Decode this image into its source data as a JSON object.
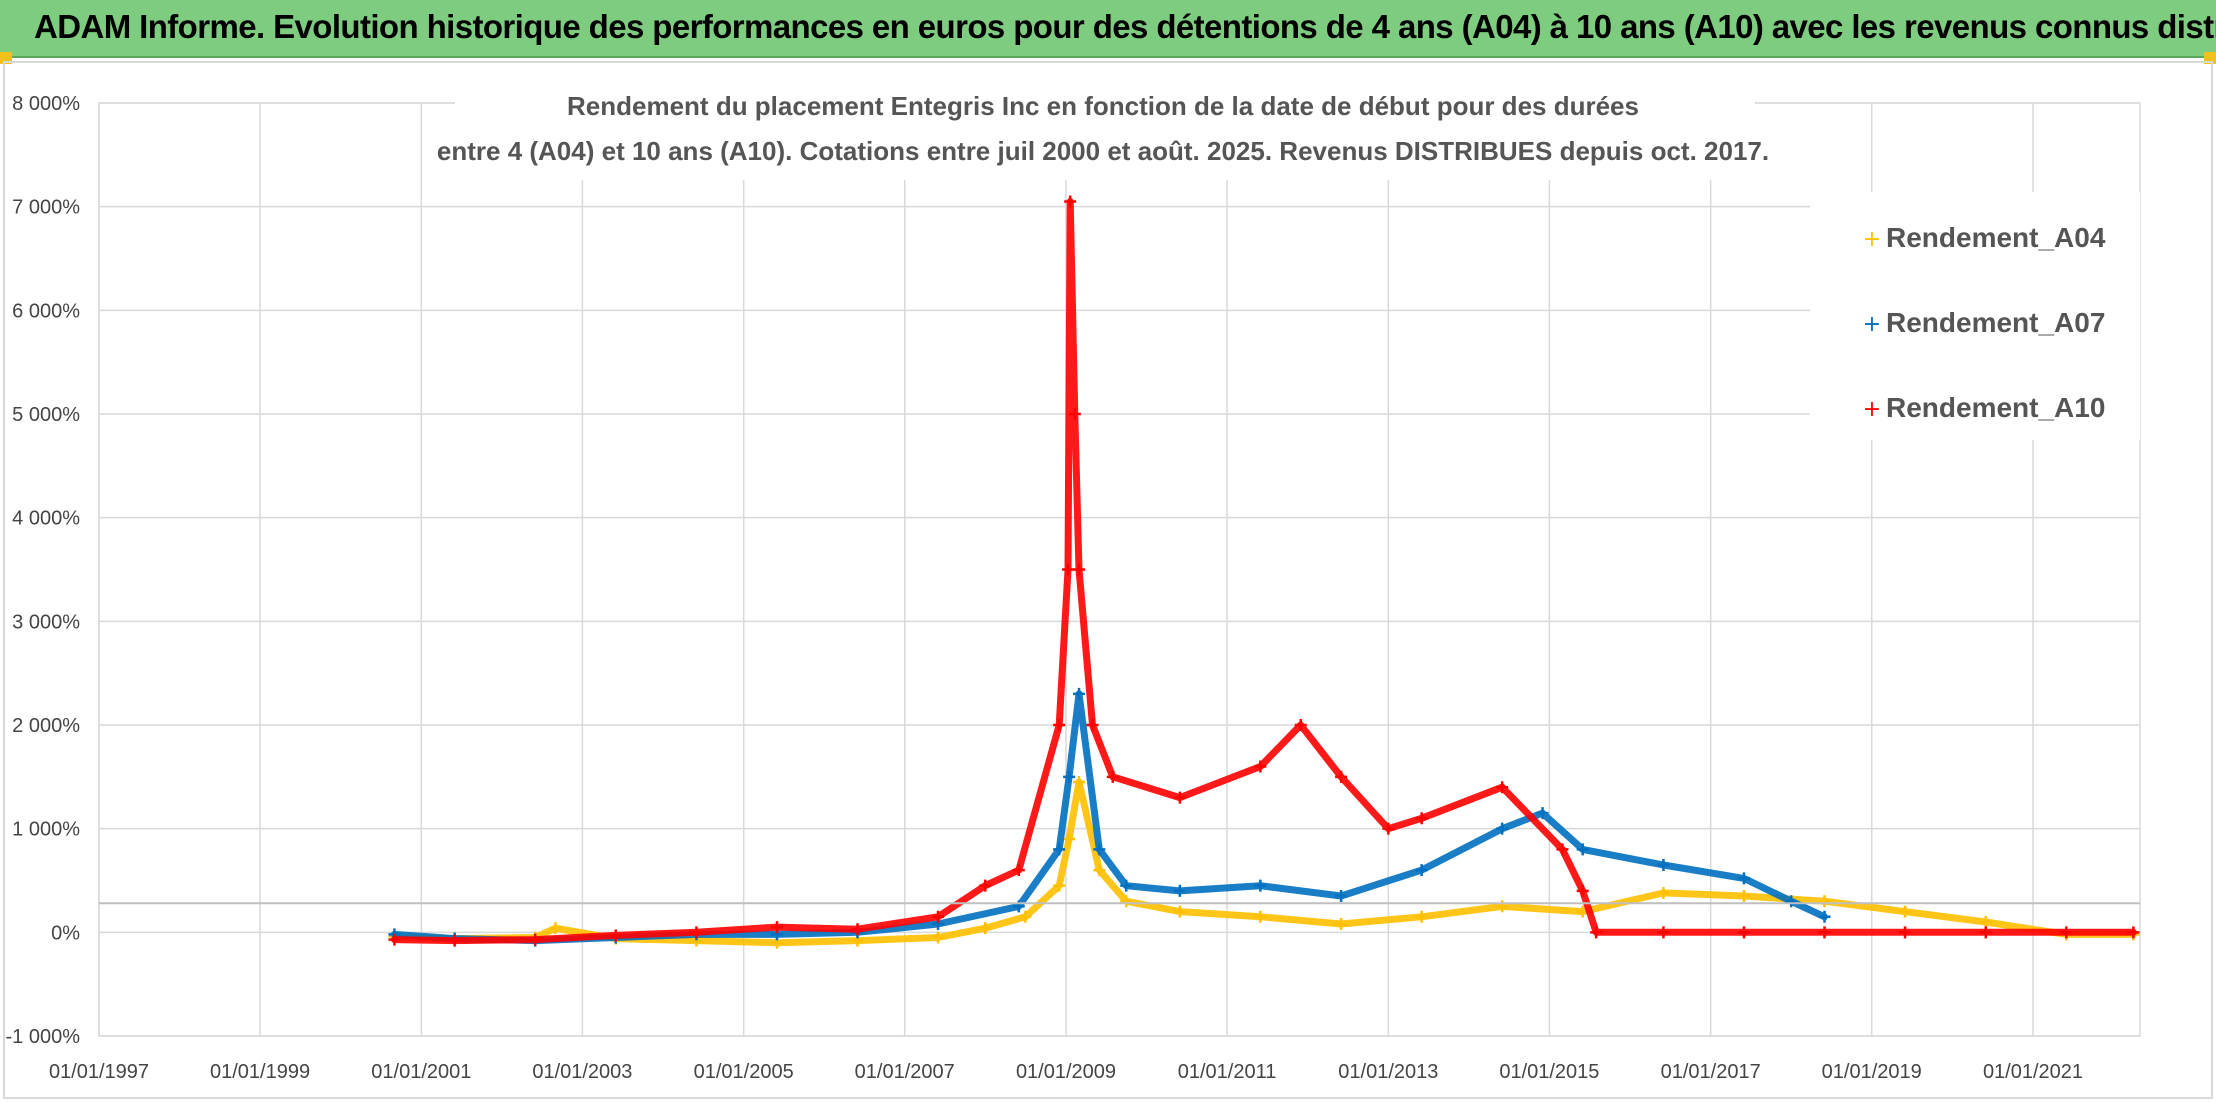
{
  "banner": {
    "title": "ADAM Informe. Evolution historique des performances en euros pour des détentions de 4 ans (A04) à 10 ans (A10) avec les revenus connus distribués"
  },
  "colors": {
    "A04": "#ffc000",
    "A07": "#0070c0",
    "A10": "#ff0000",
    "banner": "#7dcc7f"
  },
  "chart_data": {
    "type": "scatter",
    "title_line1": "Rendement du placement Entegris Inc en fonction de la date de début pour des durées",
    "title_line2": "entre 4 (A04) et 10 ans (A10). Cotations entre juil 2000 et août. 2025. Revenus DISTRIBUES depuis oct. 2017.",
    "xlim": [
      "1997-01-01",
      "2022-05-01"
    ],
    "ylim": [
      -1000,
      8000
    ],
    "x_ticks": [
      "01/01/1997",
      "01/01/1999",
      "01/01/2001",
      "01/01/2003",
      "01/01/2005",
      "01/01/2007",
      "01/01/2009",
      "01/01/2011",
      "01/01/2013",
      "01/01/2015",
      "01/01/2017",
      "01/01/2019",
      "01/01/2021"
    ],
    "y_ticks": [
      "-1 000%",
      "0%",
      "1 000%",
      "2 000%",
      "3 000%",
      "4 000%",
      "5 000%",
      "6 000%",
      "7 000%",
      "8 000%"
    ],
    "reference_line_y": 280,
    "legend_position": "top-right",
    "series": [
      {
        "name": "Rendement_A04",
        "color": "#ffc000",
        "points": [
          [
            "2000-09-01",
            -40
          ],
          [
            "2001-06-01",
            -60
          ],
          [
            "2002-06-01",
            -50
          ],
          [
            "2002-09-01",
            40
          ],
          [
            "2003-06-01",
            -60
          ],
          [
            "2004-06-01",
            -80
          ],
          [
            "2005-06-01",
            -100
          ],
          [
            "2006-06-01",
            -80
          ],
          [
            "2007-06-01",
            -50
          ],
          [
            "2008-01-01",
            40
          ],
          [
            "2008-07-01",
            150
          ],
          [
            "2008-12-01",
            450
          ],
          [
            "2009-01-15",
            900
          ],
          [
            "2009-03-01",
            1450
          ],
          [
            "2009-06-01",
            600
          ],
          [
            "2009-10-01",
            300
          ],
          [
            "2010-06-01",
            200
          ],
          [
            "2011-06-01",
            150
          ],
          [
            "2012-06-01",
            80
          ],
          [
            "2013-06-01",
            150
          ],
          [
            "2014-06-01",
            250
          ],
          [
            "2015-06-01",
            200
          ],
          [
            "2016-06-01",
            380
          ],
          [
            "2017-06-01",
            350
          ],
          [
            "2018-06-01",
            300
          ],
          [
            "2019-06-01",
            200
          ],
          [
            "2020-06-01",
            100
          ],
          [
            "2021-06-01",
            -20
          ],
          [
            "2022-04-01",
            -20
          ]
        ]
      },
      {
        "name": "Rendement_A07",
        "color": "#0070c0",
        "points": [
          [
            "2000-09-01",
            -20
          ],
          [
            "2001-06-01",
            -60
          ],
          [
            "2002-06-01",
            -80
          ],
          [
            "2003-06-01",
            -50
          ],
          [
            "2004-06-01",
            -20
          ],
          [
            "2005-06-01",
            -20
          ],
          [
            "2006-06-01",
            0
          ],
          [
            "2007-06-01",
            80
          ],
          [
            "2008-06-01",
            250
          ],
          [
            "2008-12-01",
            800
          ],
          [
            "2009-01-15",
            1500
          ],
          [
            "2009-03-01",
            2300
          ],
          [
            "2009-06-01",
            800
          ],
          [
            "2009-10-01",
            450
          ],
          [
            "2010-06-01",
            400
          ],
          [
            "2011-06-01",
            450
          ],
          [
            "2012-06-01",
            350
          ],
          [
            "2013-06-01",
            600
          ],
          [
            "2014-06-01",
            1000
          ],
          [
            "2014-12-01",
            1150
          ],
          [
            "2015-06-01",
            800
          ],
          [
            "2016-06-01",
            650
          ],
          [
            "2017-06-01",
            520
          ],
          [
            "2018-01-01",
            300
          ],
          [
            "2018-06-01",
            150
          ]
        ]
      },
      {
        "name": "Rendement_A10",
        "color": "#ff0000",
        "points": [
          [
            "2000-09-01",
            -70
          ],
          [
            "2001-06-01",
            -80
          ],
          [
            "2002-06-01",
            -70
          ],
          [
            "2003-06-01",
            -30
          ],
          [
            "2004-06-01",
            0
          ],
          [
            "2005-06-01",
            50
          ],
          [
            "2006-06-01",
            30
          ],
          [
            "2007-06-01",
            150
          ],
          [
            "2008-01-01",
            450
          ],
          [
            "2008-06-01",
            600
          ],
          [
            "2008-12-01",
            2000
          ],
          [
            "2009-01-10",
            3500
          ],
          [
            "2009-01-20",
            7050
          ],
          [
            "2009-02-10",
            5000
          ],
          [
            "2009-03-01",
            3500
          ],
          [
            "2009-05-01",
            2000
          ],
          [
            "2009-08-01",
            1500
          ],
          [
            "2010-06-01",
            1300
          ],
          [
            "2011-06-01",
            1600
          ],
          [
            "2011-12-01",
            2000
          ],
          [
            "2012-06-01",
            1500
          ],
          [
            "2013-01-01",
            1000
          ],
          [
            "2013-06-01",
            1100
          ],
          [
            "2014-06-01",
            1400
          ],
          [
            "2015-03-01",
            800
          ],
          [
            "2015-06-01",
            400
          ],
          [
            "2015-08-01",
            0
          ],
          [
            "2016-06-01",
            0
          ],
          [
            "2017-06-01",
            0
          ],
          [
            "2018-06-01",
            0
          ],
          [
            "2019-06-01",
            0
          ],
          [
            "2020-06-01",
            0
          ],
          [
            "2021-06-01",
            0
          ],
          [
            "2022-04-01",
            0
          ]
        ]
      }
    ]
  }
}
